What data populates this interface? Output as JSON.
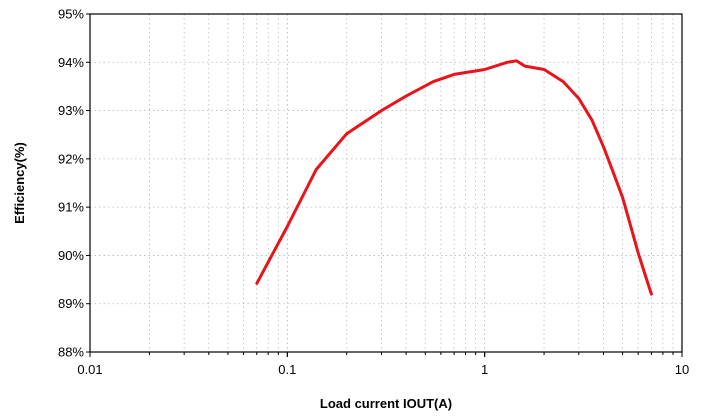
{
  "chart_data": {
    "type": "line",
    "title": "",
    "xlabel": "Load current IOUT(A)",
    "ylabel": "Efficiency(%)",
    "x_scale": "log",
    "xlim": [
      0.01,
      10
    ],
    "ylim": [
      88,
      95
    ],
    "grid": true,
    "x_ticks": [
      {
        "value": 0.01,
        "label": "0.01"
      },
      {
        "value": 0.1,
        "label": "0.1"
      },
      {
        "value": 1,
        "label": "1"
      },
      {
        "value": 10,
        "label": "10"
      }
    ],
    "y_ticks": [
      {
        "value": 88,
        "label": "88%"
      },
      {
        "value": 89,
        "label": "89%"
      },
      {
        "value": 90,
        "label": "90%"
      },
      {
        "value": 91,
        "label": "91%"
      },
      {
        "value": 92,
        "label": "92%"
      },
      {
        "value": 93,
        "label": "93%"
      },
      {
        "value": 94,
        "label": "94%"
      },
      {
        "value": 95,
        "label": "95%"
      }
    ],
    "series": [
      {
        "color": "#e8141a",
        "x": [
          0.07,
          0.1,
          0.14,
          0.2,
          0.3,
          0.4,
          0.55,
          0.7,
          1.0,
          1.3,
          1.45,
          1.6,
          2.0,
          2.5,
          3.0,
          3.5,
          4.0,
          4.5,
          5.0,
          5.5,
          6.0,
          6.5,
          7.0
        ],
        "y": [
          89.42,
          90.6,
          91.78,
          92.52,
          93.0,
          93.3,
          93.6,
          93.75,
          93.85,
          94.0,
          94.03,
          93.92,
          93.85,
          93.6,
          93.25,
          92.8,
          92.25,
          91.7,
          91.2,
          90.6,
          90.05,
          89.6,
          89.2
        ]
      }
    ]
  }
}
